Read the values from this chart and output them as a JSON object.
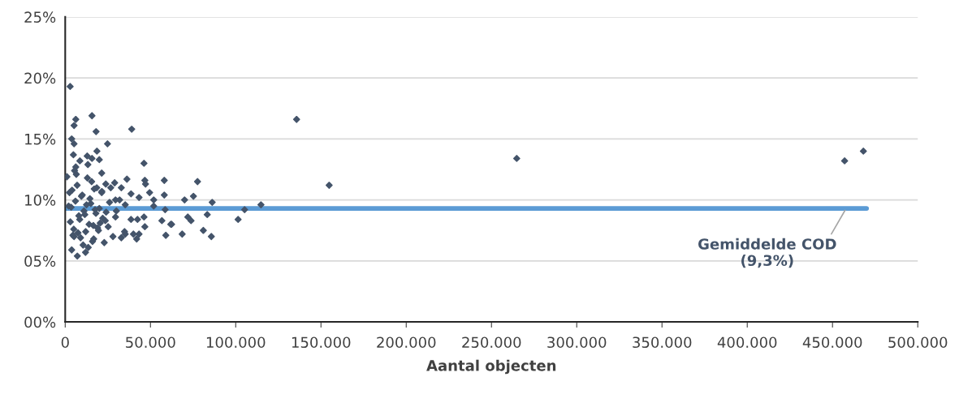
{
  "chart_data": {
    "type": "scatter",
    "xlabel": "Aantal objecten",
    "xlim": [
      0,
      500000
    ],
    "xticks": [
      {
        "value": 0,
        "label": "0"
      },
      {
        "value": 50000,
        "label": "50.000"
      },
      {
        "value": 100000,
        "label": "100.000"
      },
      {
        "value": 150000,
        "label": "150.000"
      },
      {
        "value": 200000,
        "label": "200.000"
      },
      {
        "value": 250000,
        "label": "250.000"
      },
      {
        "value": 300000,
        "label": "300.000"
      },
      {
        "value": 350000,
        "label": "350.000"
      },
      {
        "value": 400000,
        "label": "400.000"
      },
      {
        "value": 450000,
        "label": "450.000"
      },
      {
        "value": 500000,
        "label": "500.000"
      }
    ],
    "ylim": [
      0,
      25
    ],
    "yticks": [
      {
        "value": 0,
        "label": "00%"
      },
      {
        "value": 5,
        "label": "05%"
      },
      {
        "value": 10,
        "label": "10%"
      },
      {
        "value": 15,
        "label": "15%"
      },
      {
        "value": 20,
        "label": "20%"
      },
      {
        "value": 25,
        "label": "25%"
      }
    ],
    "grid": "y",
    "series": [
      {
        "marker": "diamond",
        "color": "#44546a",
        "x": [
          2900,
          6200,
          5200,
          15700,
          18100,
          39000,
          135700,
          154800,
          264800,
          457100,
          468100,
          114800,
          105200,
          101400,
          86200,
          85700,
          81000,
          83300,
          77600,
          75200,
          70000,
          71900,
          73800,
          68600,
          62400,
          59000,
          58100,
          58100,
          58600,
          24800,
          46200,
          46700,
          47100,
          36200,
          29000,
          21400,
          20000,
          18600,
          3800,
          5200,
          4800,
          12900,
          15700,
          8600,
          13300,
          6200,
          1000,
          38600,
          49500,
          51900,
          43300,
          32900,
          26700,
          23800,
          21400,
          35200,
          51900,
          38600,
          42400,
          46200,
          46700,
          34800,
          35200,
          40000,
          43300,
          41900,
          32900,
          56700,
          61900,
          22900,
          16700,
          11900,
          7100,
          3800,
          5200,
          29500,
          25200,
          29500,
          31900,
          2000,
          3000,
          4000,
          5000,
          6000,
          7000,
          8000,
          9000,
          10000,
          11000,
          12000,
          13000,
          14000,
          15000,
          16000,
          17000,
          18000,
          19000,
          20000,
          22000,
          24000,
          2500,
          4500,
          6500,
          8500,
          10500,
          12500,
          14500,
          16500,
          18500,
          20500,
          3500,
          5500,
          7500,
          9500,
          11500,
          13500,
          15500,
          17500,
          19500,
          21500,
          23500,
          26000,
          28000,
          30000
        ],
        "values": [
          19.3,
          16.6,
          16.1,
          16.9,
          15.6,
          15.8,
          16.6,
          11.2,
          13.4,
          13.2,
          14.0,
          9.6,
          9.2,
          8.4,
          9.8,
          7.0,
          7.5,
          8.8,
          11.5,
          10.3,
          10.0,
          8.6,
          8.3,
          7.2,
          8.0,
          7.1,
          11.6,
          10.4,
          9.2,
          14.6,
          13.0,
          11.6,
          11.3,
          11.7,
          11.4,
          12.2,
          13.3,
          14.0,
          15.0,
          14.6,
          13.7,
          13.6,
          13.4,
          13.2,
          12.9,
          12.7,
          11.9,
          10.5,
          10.6,
          10.0,
          10.2,
          11.0,
          11.0,
          11.3,
          10.6,
          9.6,
          9.5,
          8.4,
          8.4,
          8.6,
          7.8,
          7.4,
          7.2,
          7.2,
          7.2,
          6.8,
          6.9,
          8.3,
          8.0,
          6.5,
          6.8,
          5.7,
          5.4,
          5.9,
          7.0,
          8.6,
          7.8,
          10.0,
          10.0,
          9.5,
          8.2,
          10.8,
          7.6,
          9.9,
          11.2,
          8.7,
          6.9,
          10.4,
          9.1,
          7.4,
          11.8,
          8.0,
          9.7,
          6.6,
          10.9,
          8.9,
          7.7,
          9.3,
          8.5,
          9.0,
          10.6,
          7.1,
          12.1,
          8.4,
          6.3,
          9.6,
          10.1,
          7.9,
          11.0,
          8.1,
          9.4,
          12.4,
          7.3,
          10.3,
          8.8,
          6.1,
          11.5,
          9.2,
          7.5,
          10.7,
          8.3,
          9.8,
          7.0,
          9.1
        ]
      },
      {
        "type": "line",
        "color": "#5b9bd5",
        "line_style": "solid",
        "marker": "none",
        "x": [
          0,
          470000
        ],
        "values": [
          9.3,
          9.3
        ]
      }
    ],
    "annotations": [
      {
        "text": "Gemiddelde COD\n(9,3%)",
        "x": 458000,
        "y": 9.3
      }
    ]
  }
}
